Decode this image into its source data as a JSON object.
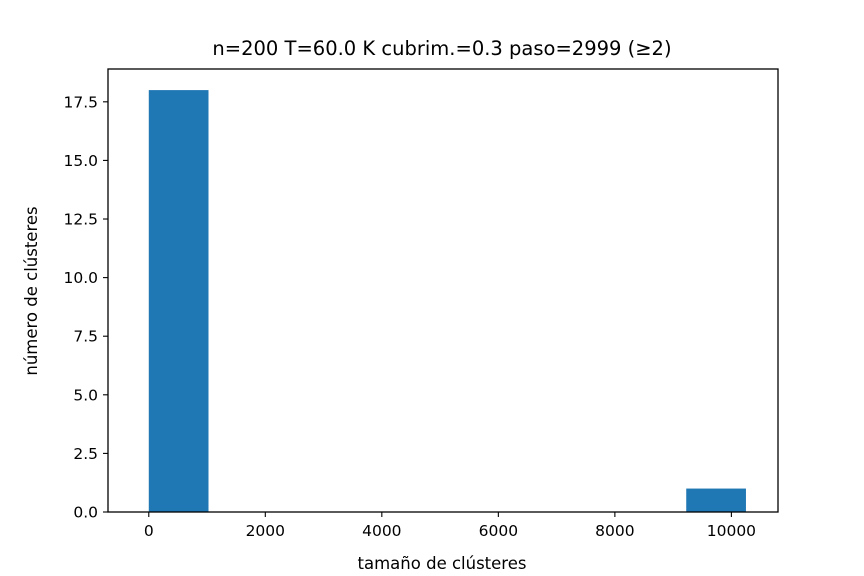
{
  "chart_data": {
    "type": "bar",
    "title": "n=200 T=60.0 K cubrim.=0.3 paso=2999 (≥2)",
    "xlabel": "tamaño de clústeres",
    "ylabel": "número de clústeres",
    "xlim": [
      -700,
      10800
    ],
    "ylim": [
      0,
      18.9
    ],
    "xticks": [
      0,
      2000,
      4000,
      6000,
      8000,
      10000
    ],
    "xtick_labels": [
      "0",
      "2000",
      "4000",
      "6000",
      "8000",
      "10000"
    ],
    "yticks": [
      0,
      2.5,
      5,
      7.5,
      10,
      12.5,
      15,
      17.5
    ],
    "ytick_labels": [
      "0.0",
      "2.5",
      "5.0",
      "7.5",
      "10.0",
      "12.5",
      "15.0",
      "17.5"
    ],
    "bins": [
      {
        "x0": 0,
        "x1": 1025,
        "count": 18
      },
      {
        "x0": 1025,
        "x1": 2050,
        "count": 0
      },
      {
        "x0": 2050,
        "x1": 3075,
        "count": 0
      },
      {
        "x0": 3075,
        "x1": 4100,
        "count": 0
      },
      {
        "x0": 4100,
        "x1": 5125,
        "count": 0
      },
      {
        "x0": 5125,
        "x1": 6150,
        "count": 0
      },
      {
        "x0": 6150,
        "x1": 7175,
        "count": 0
      },
      {
        "x0": 7175,
        "x1": 8200,
        "count": 0
      },
      {
        "x0": 8200,
        "x1": 9225,
        "count": 0
      },
      {
        "x0": 9225,
        "x1": 10250,
        "count": 1
      }
    ],
    "bar_color": "#1f77b4",
    "grid": false,
    "legend": "none"
  }
}
